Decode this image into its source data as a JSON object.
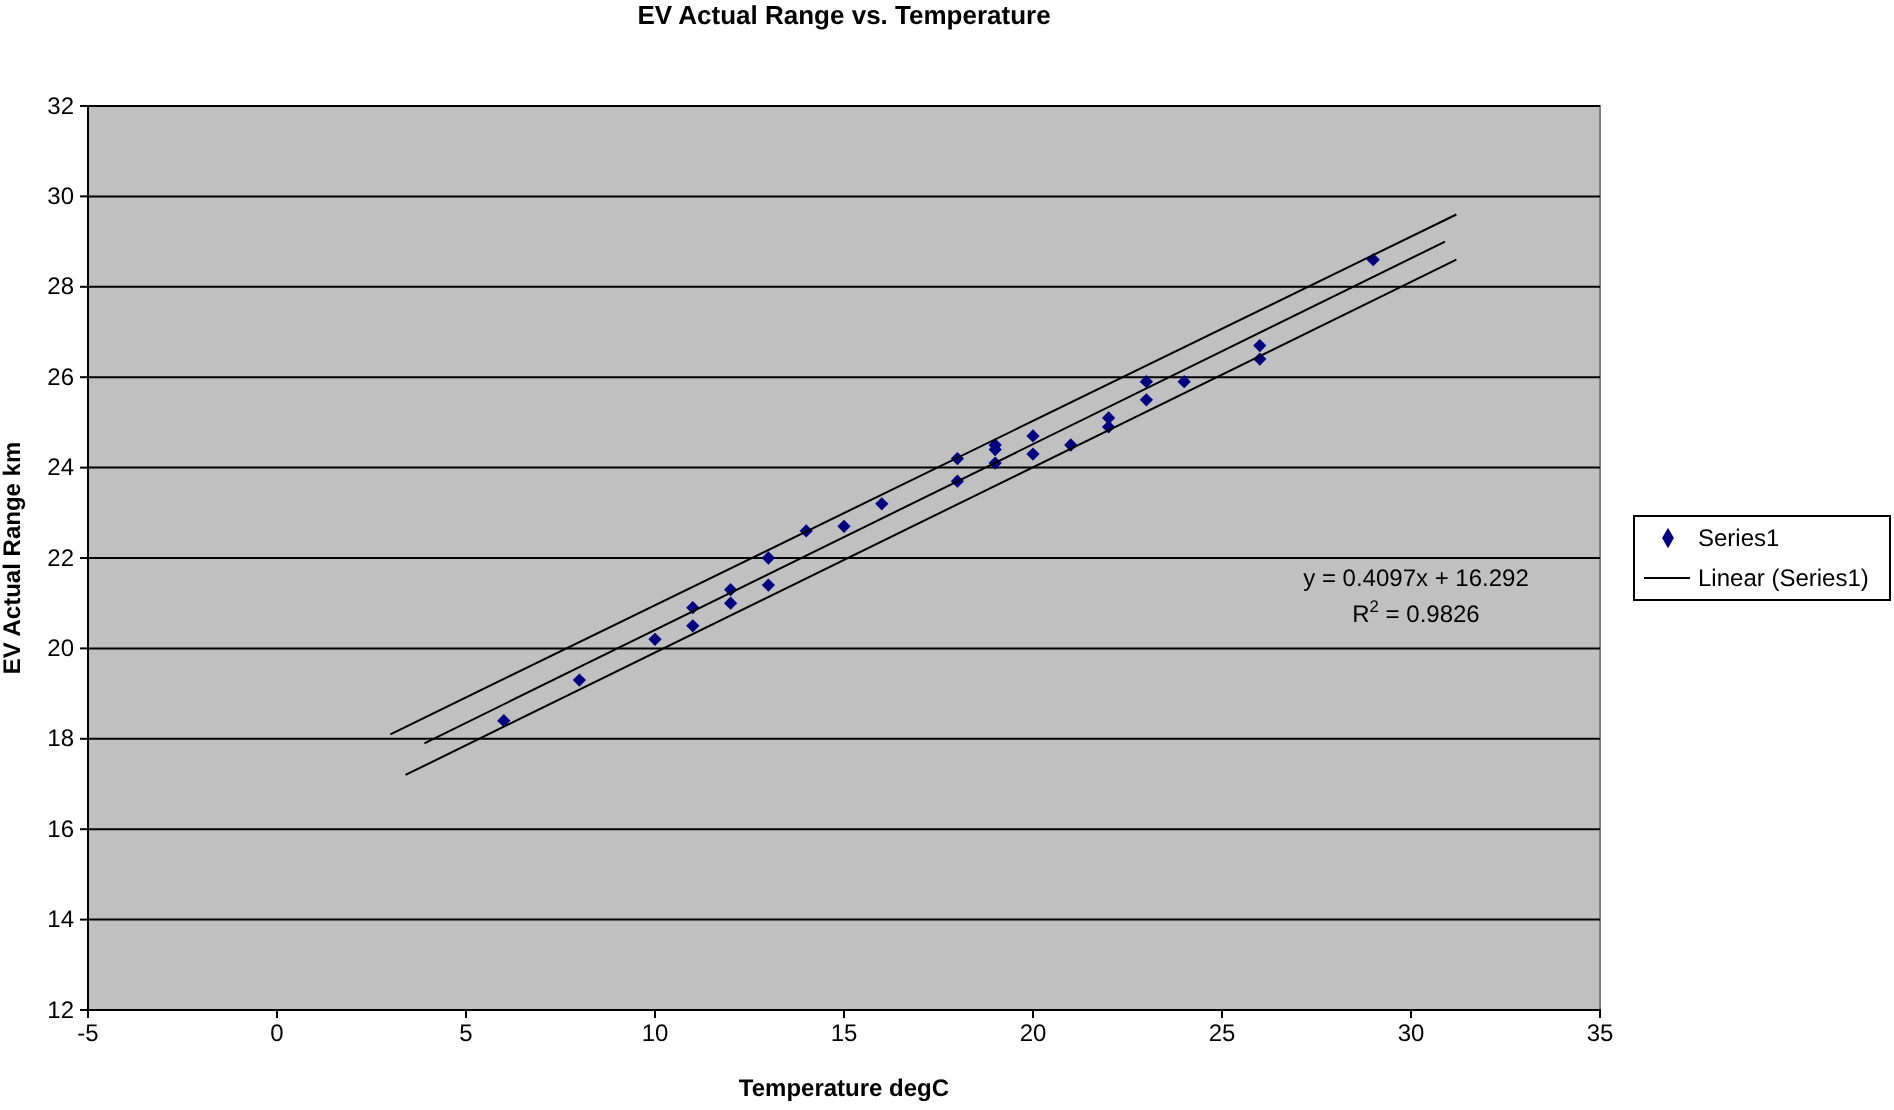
{
  "chart_data": {
    "type": "scatter",
    "title": "EV Actual Range vs. Temperature",
    "xlabel": "Temperature degC",
    "ylabel": "EV Actual Range km",
    "xlim": [
      -5,
      35
    ],
    "xticks": [
      -5,
      0,
      5,
      10,
      15,
      20,
      25,
      30,
      35
    ],
    "ylim": [
      12,
      32
    ],
    "yticks": [
      12,
      14,
      16,
      18,
      20,
      22,
      24,
      26,
      28,
      30,
      32
    ],
    "grid": "y",
    "legend": "right",
    "annotations": [
      "y = 0.4097x + 16.292",
      "R$^{2}$ = 0.9826"
    ],
    "series": [
      {
        "name": "Series1",
        "marker": "diamond",
        "color": "#000080",
        "x": [
          6,
          8,
          10,
          11,
          11,
          12,
          12,
          13,
          13,
          14,
          15,
          16,
          18,
          18,
          19,
          19,
          19,
          20,
          20,
          21,
          22,
          22,
          23,
          23,
          24,
          26,
          26,
          29
        ],
        "values": [
          18.4,
          19.3,
          20.2,
          20.5,
          20.9,
          21.0,
          21.3,
          21.4,
          22.0,
          22.6,
          22.7,
          23.2,
          23.7,
          24.2,
          24.1,
          24.4,
          24.5,
          24.3,
          24.7,
          24.5,
          24.9,
          25.1,
          25.5,
          25.9,
          25.9,
          26.4,
          26.7,
          28.6
        ]
      },
      {
        "name": "Linear (Series1)",
        "type": "line",
        "marker": "none",
        "color": "#000000",
        "x": [
          3.9,
          30.9
        ],
        "values": [
          17.9,
          29.0
        ]
      },
      {
        "type": "line",
        "marker": "none",
        "color": "#000000",
        "x": [
          3,
          31.2
        ],
        "values": [
          18.1,
          29.6
        ]
      },
      {
        "type": "line",
        "marker": "none",
        "color": "#000000",
        "x": [
          3.4,
          31.2
        ],
        "values": [
          17.2,
          28.6
        ]
      }
    ]
  }
}
